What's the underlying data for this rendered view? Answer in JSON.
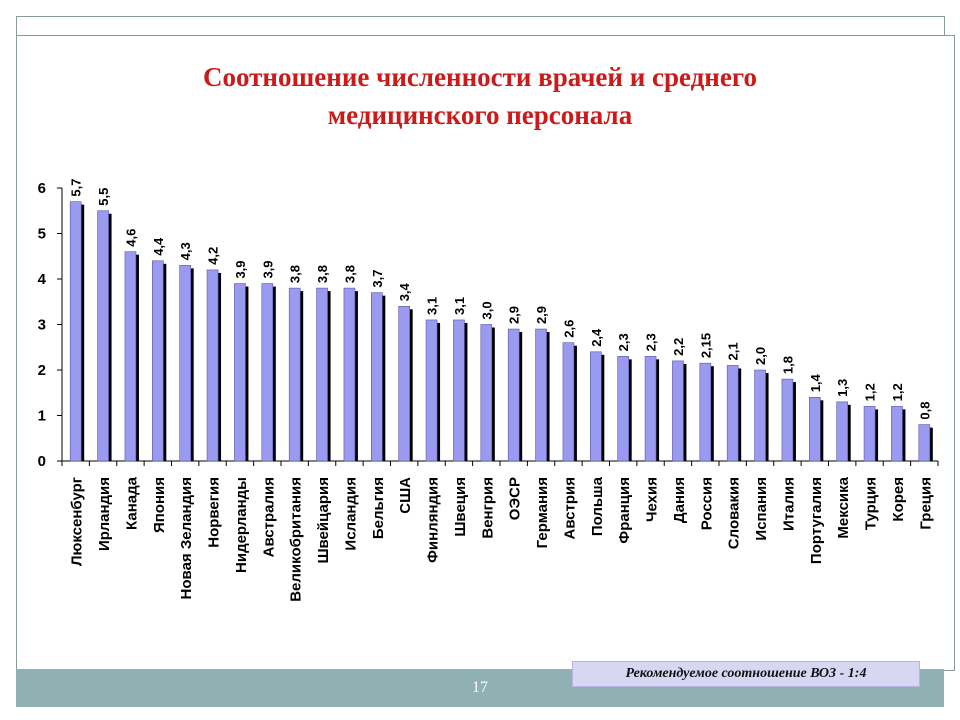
{
  "slide": {
    "number": "17"
  },
  "note": {
    "text": "Рекомендуемое соотношение  ВОЗ - 1:4"
  },
  "colors": {
    "bar": "#9a9af0",
    "bar_shadow": "#000000",
    "title": "#cc1a1a",
    "highlight": "#d21919",
    "footer": "#8fb1b4"
  },
  "chart_data": {
    "type": "bar",
    "title": "Соотношение численности врачей и среднего медицинского персонала",
    "title_lines": [
      "Соотношение численности врачей и среднего",
      "медицинского персонала"
    ],
    "xlabel": "",
    "ylabel": "",
    "ylim": [
      0,
      6
    ],
    "yticks": [
      0,
      1,
      2,
      3,
      4,
      5,
      6
    ],
    "grid": false,
    "legend": "none",
    "highlight_category": "Россия",
    "categories": [
      "Люксенбург",
      "Ирландия",
      "Канада",
      "Япония",
      "Новая Зеландия",
      "Норвегия",
      "Нидерланды",
      "Австралия",
      "Великобритания",
      "Швейцария",
      "Исландия",
      "Бельгия",
      "США",
      "Финляндия",
      "Швеция",
      "Венгрия",
      "ОЭСР",
      "Германия",
      "Австрия",
      "Польша",
      "Франция",
      "Чехия",
      "Дания",
      "Россия",
      "Словакия",
      "Испания",
      "Италия",
      "Португалия",
      "Мексика",
      "Турция",
      "Корея",
      "Греция"
    ],
    "values": [
      5.7,
      5.5,
      4.6,
      4.4,
      4.3,
      4.2,
      3.9,
      3.9,
      3.8,
      3.8,
      3.8,
      3.7,
      3.4,
      3.1,
      3.1,
      3.0,
      2.9,
      2.9,
      2.6,
      2.4,
      2.3,
      2.3,
      2.2,
      2.15,
      2.1,
      2.0,
      1.8,
      1.4,
      1.3,
      1.2,
      1.2,
      0.8
    ],
    "value_labels": [
      "5,7",
      "5,5",
      "4,6",
      "4,4",
      "4,3",
      "4,2",
      "3,9",
      "3,9",
      "3,8",
      "3,8",
      "3,8",
      "3,7",
      "3,4",
      "3,1",
      "3,1",
      "3,0",
      "2,9",
      "2,9",
      "2,6",
      "2,4",
      "2,3",
      "2,3",
      "2,2",
      "2,15",
      "2,1",
      "2,0",
      "1,8",
      "1,4",
      "1,3",
      "1,2",
      "1,2",
      "0,8"
    ]
  }
}
